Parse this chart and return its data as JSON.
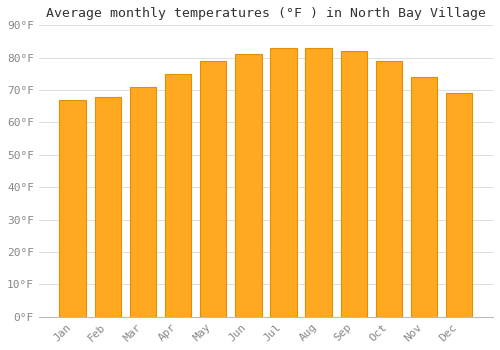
{
  "title": "Average monthly temperatures (°F ) in North Bay Village",
  "months": [
    "Jan",
    "Feb",
    "Mar",
    "Apr",
    "May",
    "Jun",
    "Jul",
    "Aug",
    "Sep",
    "Oct",
    "Nov",
    "Dec"
  ],
  "values": [
    67,
    68,
    71,
    75,
    79,
    81,
    83,
    83,
    82,
    79,
    74,
    69
  ],
  "bar_color": "#FFA820",
  "bar_edge_color": "#E09000",
  "background_color": "#FFFFFF",
  "plot_bg_color": "#FFFFFF",
  "ylim": [
    0,
    90
  ],
  "yticks": [
    0,
    10,
    20,
    30,
    40,
    50,
    60,
    70,
    80,
    90
  ],
  "ytick_labels": [
    "0°F",
    "10°F",
    "20°F",
    "30°F",
    "40°F",
    "50°F",
    "60°F",
    "70°F",
    "80°F",
    "90°F"
  ],
  "title_fontsize": 9.5,
  "tick_fontsize": 8,
  "grid_color": "#DDDDDD",
  "bar_width": 0.75,
  "tick_color": "#888888",
  "spine_color": "#BBBBBB"
}
